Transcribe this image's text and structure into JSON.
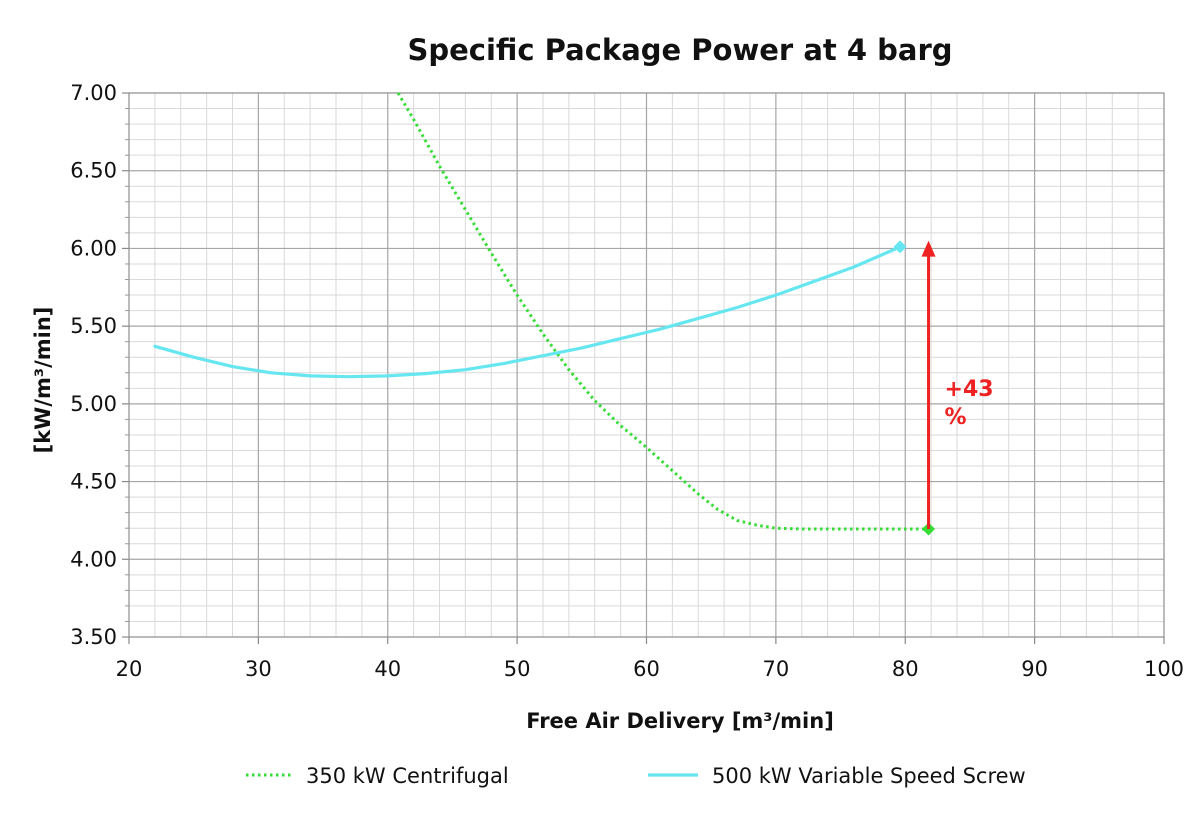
{
  "chart_data": {
    "type": "line",
    "title": "Specific Package Power at 4 barg",
    "xlabel": "Free Air Delivery [m³/min]",
    "ylabel": "[kW/m³/min]",
    "xlim": [
      20,
      100
    ],
    "ylim": [
      3.5,
      7.0
    ],
    "x_ticks": [
      20,
      30,
      40,
      50,
      60,
      70,
      80,
      90,
      100
    ],
    "x_tick_labels": [
      "20",
      "30",
      "40",
      "50",
      "60",
      "70",
      "80",
      "90",
      "100"
    ],
    "y_ticks": [
      3.5,
      4.0,
      4.5,
      5.0,
      5.5,
      6.0,
      6.5,
      7.0
    ],
    "y_tick_labels": [
      "3.50",
      "4.00",
      "4.50",
      "5.00",
      "5.50",
      "6.00",
      "6.50",
      "7.00"
    ],
    "grid": true,
    "minor_grid": true,
    "legend_position": "bottom",
    "series": [
      {
        "name": "350 kW Centrifugal",
        "style": "dotted",
        "color": "#33dd33",
        "x": [
          40.8,
          42,
          44,
          46,
          48,
          50,
          52,
          54,
          56,
          58,
          60,
          62,
          64,
          65.5,
          67,
          68.5,
          70,
          72,
          75,
          78,
          80,
          81.8
        ],
        "y": [
          7.0,
          6.83,
          6.53,
          6.25,
          5.97,
          5.7,
          5.45,
          5.22,
          5.02,
          4.86,
          4.72,
          4.57,
          4.42,
          4.32,
          4.25,
          4.22,
          4.2,
          4.195,
          4.195,
          4.195,
          4.195,
          4.195
        ],
        "end_marker": {
          "x": 81.8,
          "y": 4.195,
          "shape": "diamond"
        }
      },
      {
        "name": "500 kW Variable Speed Screw",
        "style": "solid",
        "color": "#66e6f0",
        "x": [
          22,
          25,
          28,
          31,
          34,
          37,
          40,
          43,
          46,
          49,
          52,
          55,
          58,
          61,
          64,
          67,
          70,
          73,
          76,
          79.6
        ],
        "y": [
          5.37,
          5.3,
          5.24,
          5.2,
          5.18,
          5.175,
          5.18,
          5.195,
          5.22,
          5.26,
          5.31,
          5.36,
          5.42,
          5.48,
          5.55,
          5.62,
          5.7,
          5.79,
          5.88,
          6.01
        ],
        "end_marker": {
          "x": 79.6,
          "y": 6.01,
          "shape": "diamond"
        }
      }
    ],
    "annotations": [
      {
        "type": "arrow",
        "x": 81.8,
        "y_from": 4.195,
        "y_to": 6.05,
        "color": "#ee2222",
        "text_lines": [
          "+43",
          "%"
        ]
      }
    ]
  }
}
